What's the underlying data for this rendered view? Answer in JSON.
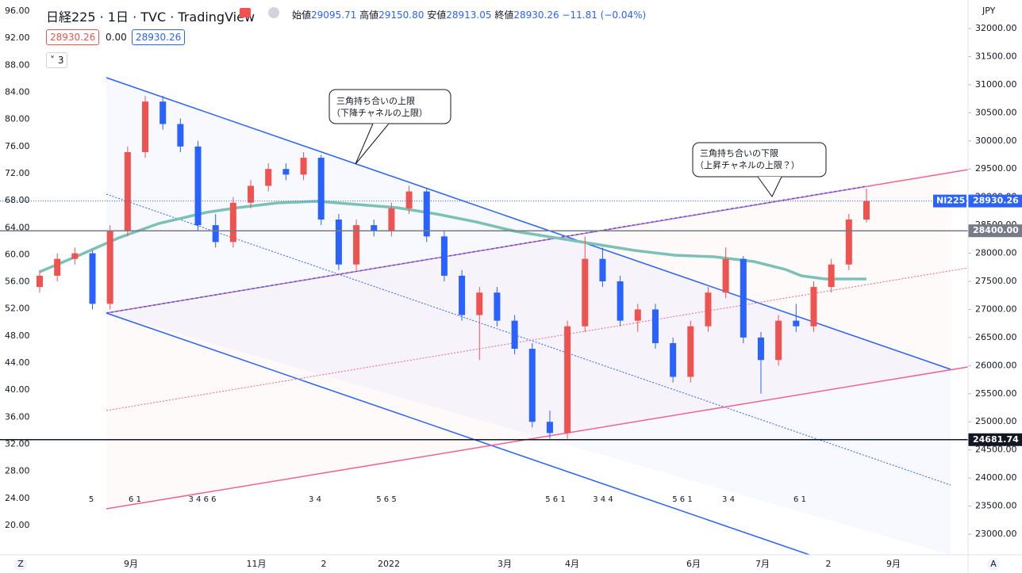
{
  "chart_data": {
    "type": "candlestick",
    "header": {
      "symbol": "日経225 · 1日 · TVC · TradingView",
      "open_label": "始値",
      "open": "29095.71",
      "high_label": "高値",
      "high": "29150.80",
      "low_label": "安値",
      "low": "28913.05",
      "close_label": "終値",
      "close": "28930.26",
      "change": "−11.81 (−0.04%)"
    },
    "indicator": {
      "left": "28930.26",
      "mid": "0.00",
      "right": "28930.26",
      "collapse": "3"
    },
    "currency": "JPY",
    "up_color": "#ef5350",
    "down_color": "#2962ff",
    "candles": [
      [
        27400,
        27700,
        27300,
        27600
      ],
      [
        27600,
        28000,
        27500,
        27900
      ],
      [
        27900,
        28100,
        27800,
        28000
      ],
      [
        28000,
        28050,
        27000,
        27100
      ],
      [
        27100,
        28500,
        27000,
        28400
      ],
      [
        28400,
        29900,
        28300,
        29800
      ],
      [
        29800,
        30800,
        29700,
        30700
      ],
      [
        30700,
        30800,
        30200,
        30300
      ],
      [
        30300,
        30400,
        29800,
        29900
      ],
      [
        29900,
        30000,
        28400,
        28500
      ],
      [
        28500,
        28700,
        28100,
        28200
      ],
      [
        28200,
        29000,
        28100,
        28900
      ],
      [
        28900,
        29300,
        28800,
        29200
      ],
      [
        29200,
        29600,
        29100,
        29500
      ],
      [
        29500,
        29600,
        29300,
        29400
      ],
      [
        29400,
        29800,
        29300,
        29700
      ],
      [
        29700,
        29750,
        28500,
        28600
      ],
      [
        28600,
        28700,
        27700,
        27800
      ],
      [
        27800,
        28600,
        27700,
        28500
      ],
      [
        28500,
        28600,
        28300,
        28400
      ],
      [
        28400,
        28900,
        28300,
        28800
      ],
      [
        28800,
        29200,
        28700,
        29100
      ],
      [
        29100,
        29150,
        28200,
        28300
      ],
      [
        28300,
        28400,
        27500,
        27600
      ],
      [
        27600,
        27700,
        26800,
        26900
      ],
      [
        26900,
        27400,
        26100,
        27300
      ],
      [
        27300,
        27400,
        26700,
        26800
      ],
      [
        26800,
        26900,
        26200,
        26300
      ],
      [
        26300,
        26400,
        24900,
        25000
      ],
      [
        25000,
        25200,
        24700,
        24800
      ],
      [
        24800,
        26800,
        24700,
        26700
      ],
      [
        26700,
        28300,
        26600,
        27900
      ],
      [
        27900,
        28100,
        27400,
        27500
      ],
      [
        27500,
        27600,
        26700,
        26800
      ],
      [
        26800,
        27100,
        26600,
        27000
      ],
      [
        27000,
        27100,
        26300,
        26400
      ],
      [
        26400,
        26500,
        25700,
        25800
      ],
      [
        25800,
        26800,
        25700,
        26700
      ],
      [
        26700,
        27400,
        26600,
        27300
      ],
      [
        27300,
        28100,
        27200,
        27900
      ],
      [
        27900,
        27950,
        26400,
        26500
      ],
      [
        26500,
        26600,
        25500,
        26100
      ],
      [
        26100,
        26900,
        26000,
        26800
      ],
      [
        26800,
        27100,
        26600,
        26700
      ],
      [
        26700,
        27500,
        26600,
        27400
      ],
      [
        27400,
        27900,
        27300,
        27800
      ],
      [
        27800,
        28700,
        27700,
        28600
      ],
      [
        28600,
        29150,
        28550,
        28930
      ]
    ],
    "ylim": [
      23000,
      32000
    ],
    "yticks": [
      {
        "value": 32000,
        "label": "32000.00"
      },
      {
        "value": 31500,
        "label": "31500.00"
      },
      {
        "value": 31000,
        "label": "31000.00"
      },
      {
        "value": 30500,
        "label": "30500.00"
      },
      {
        "value": 30000,
        "label": "30000.00"
      },
      {
        "value": 29500,
        "label": "29500.00"
      },
      {
        "value": 29000,
        "label": "29000.00"
      },
      {
        "value": 28500,
        "label": "28500.00"
      },
      {
        "value": 28000,
        "label": "28000.00"
      },
      {
        "value": 27500,
        "label": "27500.00"
      },
      {
        "value": 27000,
        "label": "27000.00"
      },
      {
        "value": 26500,
        "label": "26500.00"
      },
      {
        "value": 26000,
        "label": "26000.00"
      },
      {
        "value": 25500,
        "label": "25500.00"
      },
      {
        "value": 25000,
        "label": "25000.00"
      },
      {
        "value": 24500,
        "label": "24500.00"
      },
      {
        "value": 24000,
        "label": "24000.00"
      },
      {
        "value": 23500,
        "label": "23500.00"
      },
      {
        "value": 23000,
        "label": "23000.00"
      }
    ],
    "y2lim": [
      20,
      96
    ],
    "y2ticks": [
      {
        "value": 96,
        "label": "96.00"
      },
      {
        "value": 92,
        "label": "92.00"
      },
      {
        "value": 88,
        "label": "88.00"
      },
      {
        "value": 84,
        "label": "84.00"
      },
      {
        "value": 80,
        "label": "80.00"
      },
      {
        "value": 76,
        "label": "76.00"
      },
      {
        "value": 72,
        "label": "72.00"
      },
      {
        "value": 68,
        "label": "68.00"
      },
      {
        "value": 64,
        "label": "64.00"
      },
      {
        "value": 60,
        "label": "60.00"
      },
      {
        "value": 56,
        "label": "56.00"
      },
      {
        "value": 52,
        "label": "52.00"
      },
      {
        "value": 48,
        "label": "48.00"
      },
      {
        "value": 44,
        "label": "44.00"
      },
      {
        "value": 40,
        "label": "40.00"
      },
      {
        "value": 36,
        "label": "36.00"
      },
      {
        "value": 32,
        "label": "32.00"
      },
      {
        "value": 28,
        "label": "28.00"
      },
      {
        "value": 24,
        "label": "24.00"
      },
      {
        "value": 20,
        "label": "20.00"
      }
    ],
    "price_tags": [
      {
        "name": "NI225",
        "value": 28930.26,
        "label": "28930.26",
        "color": "#2962ff"
      },
      {
        "value": 28400,
        "label": "28400.00",
        "color": "#787b86"
      },
      {
        "value": 24681.74,
        "label": "24681.74",
        "color": "#131722"
      }
    ],
    "x_labels": [
      "9月",
      "11月",
      "2",
      "2022",
      "3月",
      "4月",
      "6月",
      "7月",
      "2",
      "9月"
    ],
    "event_markers": [
      "5",
      "6 1",
      "3 4 6 6",
      "3 4",
      "5 6 5",
      "5 6 1",
      "3 4 4",
      "5 6 1",
      "3 4",
      "6 1"
    ],
    "annotations": [
      {
        "line1": "三角持ち合いの上限",
        "line2": "（下降チャネルの上限）"
      },
      {
        "line1": "三角持ち合いの下限",
        "line2": "（上昇チャネルの上限？）"
      }
    ],
    "corner_left": "Z",
    "corner_right": "A"
  }
}
